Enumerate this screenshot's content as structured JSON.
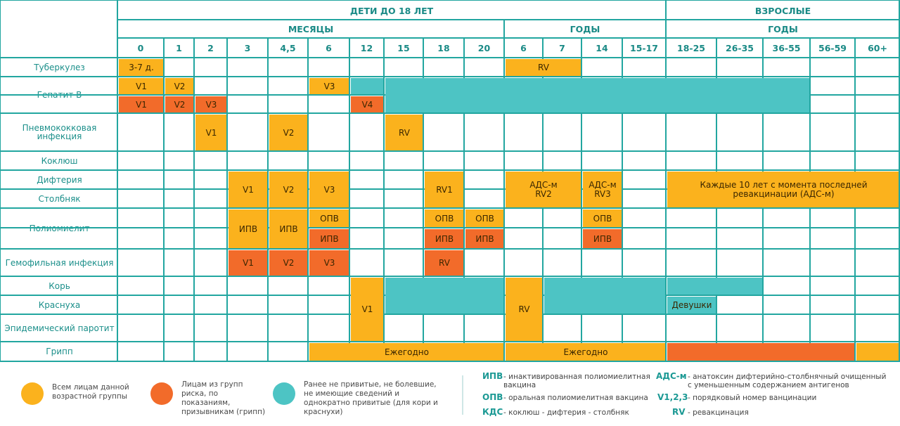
{
  "header": {
    "children": "ДЕТИ ДО 18 ЛЕТ",
    "adults": "ВЗРОСЛЫЕ",
    "months": "МЕСЯЦЫ",
    "years_children": "ГОДЫ",
    "years_adults": "ГОДЫ",
    "ages": [
      "0",
      "1",
      "2",
      "3",
      "4,5",
      "6",
      "12",
      "15",
      "18",
      "20",
      "6",
      "7",
      "14",
      "15-17",
      "18-25",
      "26-35",
      "36-55",
      "56-59",
      "60+"
    ]
  },
  "diseases": [
    "Туберкулез",
    "Гепатит В",
    "Пневмококковая инфекция",
    "Коклюш",
    "Дифтерия",
    "Столбняк",
    "Полиомиелит",
    "Гемофильная инфекция",
    "Корь",
    "Краснуха",
    "Эпидемический паротит",
    "Грипп"
  ],
  "blocks": [
    {
      "cat": "everyone",
      "label": "3-7 д."
    },
    {
      "cat": "everyone",
      "label": "RV"
    },
    {
      "cat": "everyone",
      "label": "V1"
    },
    {
      "cat": "everyone",
      "label": "V2"
    },
    {
      "cat": "everyone",
      "label": "V3"
    },
    {
      "cat": "not_vaccinated",
      "label": ""
    },
    {
      "cat": "not_vaccinated",
      "label": ""
    },
    {
      "cat": "risk",
      "label": "V1"
    },
    {
      "cat": "risk",
      "label": "V2"
    },
    {
      "cat": "risk",
      "label": "V3"
    },
    {
      "cat": "risk",
      "label": "V4"
    },
    {
      "cat": "everyone",
      "label": "V1"
    },
    {
      "cat": "everyone",
      "label": "V2"
    },
    {
      "cat": "everyone",
      "label": "RV"
    },
    {
      "cat": "everyone",
      "label": "V1"
    },
    {
      "cat": "everyone",
      "label": "V2"
    },
    {
      "cat": "everyone",
      "label": "V3"
    },
    {
      "cat": "everyone",
      "label": "RV1"
    },
    {
      "cat": "everyone",
      "label": "АДС-м RV2"
    },
    {
      "cat": "everyone",
      "label": "АДС-м RV3"
    },
    {
      "cat": "everyone",
      "label": "Каждые 10 лет с момента последней ревакцинации (АДС-м)"
    },
    {
      "cat": "everyone",
      "label": "ИПВ"
    },
    {
      "cat": "everyone",
      "label": "ИПВ"
    },
    {
      "cat": "everyone",
      "label": "ОПВ"
    },
    {
      "cat": "everyone",
      "label": "ОПВ"
    },
    {
      "cat": "everyone",
      "label": "ОПВ"
    },
    {
      "cat": "everyone",
      "label": "ОПВ"
    },
    {
      "cat": "risk",
      "label": "ИПВ"
    },
    {
      "cat": "risk",
      "label": "ИПВ"
    },
    {
      "cat": "risk",
      "label": "ИПВ"
    },
    {
      "cat": "risk",
      "label": "ИПВ"
    },
    {
      "cat": "risk",
      "label": "V1"
    },
    {
      "cat": "risk",
      "label": "V2"
    },
    {
      "cat": "risk",
      "label": "V3"
    },
    {
      "cat": "risk",
      "label": "RV"
    },
    {
      "cat": "everyone",
      "label": "V1"
    },
    {
      "cat": "not_vaccinated",
      "label": ""
    },
    {
      "cat": "everyone",
      "label": "RV"
    },
    {
      "cat": "not_vaccinated",
      "label": ""
    },
    {
      "cat": "not_vaccinated",
      "label": ""
    },
    {
      "cat": "not_vaccinated",
      "label": "Девушки"
    },
    {
      "cat": "everyone",
      "label": "Ежегодно"
    },
    {
      "cat": "everyone",
      "label": "Ежегодно"
    },
    {
      "cat": "risk",
      "label": ""
    },
    {
      "cat": "everyone",
      "label": ""
    }
  ],
  "legend": {
    "everyone": "Всем лицам данной возрастной группы",
    "risk": "Лицам из групп риска, по показаниям, призывникам (грипп)",
    "not_vaccinated": "Ранее не привитые, не болевшие, не имеющие сведений и однократно привитые (для кори и краснухи)",
    "abbreviations": [
      {
        "abbr": "ИПВ",
        "text": "- инактивированная полиомиелитная вакцина"
      },
      {
        "abbr": "ОПВ",
        "text": "- оральная полиомиелитная вакцина"
      },
      {
        "abbr": "КДС",
        "text": "- коклюш - дифтерия - столбняк"
      },
      {
        "abbr": "АДС-м",
        "text": "- анатоксин дифтерийно-столбнячный очищенный с уменьшенным содержанием антигенов"
      },
      {
        "abbr": "V1,2,3",
        "text": "- порядковый номер ванцинации"
      },
      {
        "abbr": "RV",
        "text": "- ревакцинация"
      }
    ]
  },
  "colors": {
    "everyone": "#fbb21d",
    "risk": "#f26b2a",
    "not_vaccinated": "#4dc4c4",
    "grid": "#22a6a0"
  }
}
